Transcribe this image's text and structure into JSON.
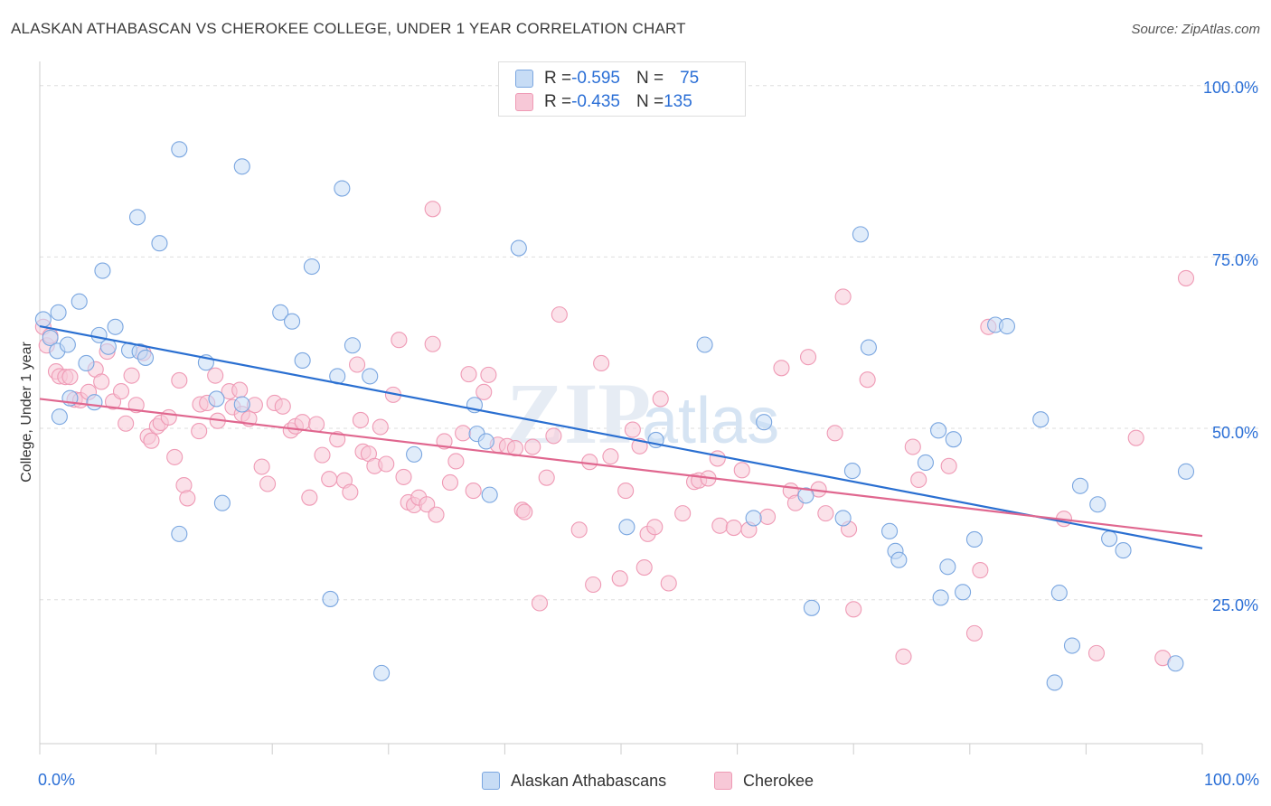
{
  "title": "ALASKAN ATHABASCAN VS CHEROKEE COLLEGE, UNDER 1 YEAR CORRELATION CHART",
  "source": "Source: ZipAtlas.com",
  "watermark": {
    "zip": "ZIP",
    "atlas": "atlas"
  },
  "legend_top": [
    {
      "r_label": "R = ",
      "r_value": "-0.595",
      "n_label": "N = ",
      "n_value": "75",
      "color": "#7aa6e0"
    },
    {
      "r_label": "R = ",
      "r_value": "-0.435",
      "n_label": "N = ",
      "n_value": "135",
      "color": "#ef9ab5"
    }
  ],
  "chart_data": {
    "type": "scatter",
    "title": "ALASKAN ATHABASCAN VS CHEROKEE COLLEGE, UNDER 1 YEAR CORRELATION CHART",
    "xlabel": "",
    "ylabel": "College, Under 1 year",
    "x_tick_labels": [
      "0.0%",
      "100.0%"
    ],
    "y_tick_labels": [
      "100.0%",
      "75.0%",
      "50.0%",
      "25.0%"
    ],
    "xlim": [
      0,
      100
    ],
    "ylim": [
      4,
      103
    ],
    "grid": true,
    "legend_position": "bottom-center",
    "series": [
      {
        "name": "Alaskan Athabascans",
        "color": "#7aa6e0",
        "fill": "#c7dcf5",
        "trend": {
          "x": [
            0,
            100
          ],
          "y": [
            64.9,
            32.5
          ],
          "color": "#2a6fd1"
        },
        "points": [
          [
            0.3,
            65.9
          ],
          [
            1.6,
            66.9
          ],
          [
            3.4,
            68.5
          ],
          [
            0.9,
            63.2
          ],
          [
            1.5,
            61.3
          ],
          [
            2.4,
            62.2
          ],
          [
            5.1,
            63.6
          ],
          [
            6.5,
            64.8
          ],
          [
            5.9,
            61.9
          ],
          [
            7.7,
            61.4
          ],
          [
            8.6,
            61.2
          ],
          [
            9.1,
            60.3
          ],
          [
            4.0,
            59.5
          ],
          [
            14.3,
            59.6
          ],
          [
            2.6,
            54.4
          ],
          [
            4.7,
            53.8
          ],
          [
            1.7,
            51.7
          ],
          [
            15.2,
            54.3
          ],
          [
            17.4,
            53.5
          ],
          [
            8.4,
            80.8
          ],
          [
            10.3,
            77.0
          ],
          [
            12.0,
            90.7
          ],
          [
            17.4,
            88.2
          ],
          [
            5.4,
            73.0
          ],
          [
            23.4,
            73.6
          ],
          [
            20.7,
            66.9
          ],
          [
            21.7,
            65.6
          ],
          [
            26.0,
            85.0
          ],
          [
            26.9,
            62.1
          ],
          [
            22.6,
            59.9
          ],
          [
            25.6,
            57.6
          ],
          [
            28.4,
            57.6
          ],
          [
            37.6,
            49.2
          ],
          [
            12.0,
            34.6
          ],
          [
            15.7,
            39.1
          ],
          [
            25.0,
            25.1
          ],
          [
            29.4,
            14.3
          ],
          [
            32.2,
            46.2
          ],
          [
            37.4,
            53.4
          ],
          [
            38.4,
            48.1
          ],
          [
            38.7,
            40.3
          ],
          [
            41.2,
            76.3
          ],
          [
            50.5,
            35.6
          ],
          [
            53.0,
            48.3
          ],
          [
            57.2,
            62.2
          ],
          [
            61.4,
            36.9
          ],
          [
            62.3,
            50.9
          ],
          [
            65.9,
            40.2
          ],
          [
            66.4,
            23.8
          ],
          [
            69.1,
            36.9
          ],
          [
            70.6,
            78.3
          ],
          [
            69.9,
            43.8
          ],
          [
            71.3,
            61.8
          ],
          [
            73.1,
            35.0
          ],
          [
            73.6,
            32.1
          ],
          [
            73.9,
            30.8
          ],
          [
            76.2,
            45.0
          ],
          [
            77.3,
            49.7
          ],
          [
            77.5,
            25.3
          ],
          [
            78.1,
            29.8
          ],
          [
            78.6,
            48.4
          ],
          [
            79.4,
            26.1
          ],
          [
            80.4,
            33.8
          ],
          [
            82.2,
            65.1
          ],
          [
            83.2,
            64.9
          ],
          [
            86.1,
            51.3
          ],
          [
            87.3,
            12.9
          ],
          [
            87.7,
            26.0
          ],
          [
            88.8,
            18.3
          ],
          [
            89.5,
            41.6
          ],
          [
            91.0,
            38.9
          ],
          [
            92.0,
            33.9
          ],
          [
            93.2,
            32.2
          ],
          [
            98.6,
            43.7
          ],
          [
            97.7,
            15.7
          ]
        ]
      },
      {
        "name": "Cherokee",
        "color": "#ef9ab5",
        "fill": "#f7c8d7",
        "trend": {
          "x": [
            0,
            100
          ],
          "y": [
            54.3,
            34.3
          ],
          "color": "#e0678f"
        },
        "points": [
          [
            0.3,
            64.8
          ],
          [
            0.6,
            62.1
          ],
          [
            0.9,
            63.5
          ],
          [
            1.4,
            58.3
          ],
          [
            1.7,
            57.6
          ],
          [
            2.2,
            57.5
          ],
          [
            2.6,
            57.5
          ],
          [
            3.0,
            54.2
          ],
          [
            3.5,
            54.1
          ],
          [
            4.2,
            55.3
          ],
          [
            4.8,
            58.6
          ],
          [
            5.3,
            56.8
          ],
          [
            5.8,
            61.2
          ],
          [
            6.3,
            53.9
          ],
          [
            7.0,
            55.4
          ],
          [
            7.4,
            50.7
          ],
          [
            7.9,
            57.7
          ],
          [
            8.3,
            53.4
          ],
          [
            8.9,
            61.0
          ],
          [
            9.3,
            48.8
          ],
          [
            9.6,
            48.2
          ],
          [
            10.1,
            50.3
          ],
          [
            10.4,
            50.8
          ],
          [
            11.1,
            51.6
          ],
          [
            11.6,
            45.8
          ],
          [
            12.0,
            57.0
          ],
          [
            12.4,
            41.7
          ],
          [
            12.7,
            39.8
          ],
          [
            13.8,
            53.5
          ],
          [
            14.4,
            53.7
          ],
          [
            15.1,
            57.7
          ],
          [
            15.3,
            51.1
          ],
          [
            16.3,
            55.4
          ],
          [
            16.6,
            53.1
          ],
          [
            17.4,
            52.1
          ],
          [
            17.2,
            55.6
          ],
          [
            18.0,
            51.4
          ],
          [
            18.5,
            53.4
          ],
          [
            19.1,
            44.4
          ],
          [
            19.6,
            41.9
          ],
          [
            20.2,
            53.7
          ],
          [
            20.9,
            53.2
          ],
          [
            21.6,
            49.7
          ],
          [
            22.0,
            50.3
          ],
          [
            22.6,
            50.9
          ],
          [
            23.2,
            39.9
          ],
          [
            23.8,
            50.6
          ],
          [
            24.3,
            46.1
          ],
          [
            24.9,
            42.6
          ],
          [
            25.6,
            48.4
          ],
          [
            26.2,
            42.4
          ],
          [
            26.7,
            40.7
          ],
          [
            27.3,
            59.3
          ],
          [
            27.8,
            46.6
          ],
          [
            28.3,
            46.3
          ],
          [
            28.8,
            44.5
          ],
          [
            29.3,
            50.2
          ],
          [
            29.8,
            44.8
          ],
          [
            30.4,
            54.9
          ],
          [
            30.9,
            62.9
          ],
          [
            31.3,
            42.9
          ],
          [
            31.7,
            39.2
          ],
          [
            32.2,
            38.8
          ],
          [
            32.6,
            39.9
          ],
          [
            33.3,
            38.9
          ],
          [
            33.8,
            62.3
          ],
          [
            34.1,
            37.4
          ],
          [
            34.8,
            48.1
          ],
          [
            35.3,
            42.1
          ],
          [
            35.8,
            45.2
          ],
          [
            36.4,
            49.3
          ],
          [
            36.9,
            57.9
          ],
          [
            37.3,
            40.9
          ],
          [
            38.2,
            55.3
          ],
          [
            38.6,
            57.8
          ],
          [
            39.4,
            47.6
          ],
          [
            40.2,
            47.4
          ],
          [
            40.9,
            47.1
          ],
          [
            41.5,
            38.1
          ],
          [
            41.7,
            37.8
          ],
          [
            42.4,
            47.3
          ],
          [
            43.0,
            24.5
          ],
          [
            43.6,
            42.8
          ],
          [
            44.2,
            48.9
          ],
          [
            44.7,
            66.6
          ],
          [
            46.4,
            35.2
          ],
          [
            47.3,
            45.1
          ],
          [
            47.6,
            27.2
          ],
          [
            48.3,
            59.5
          ],
          [
            49.1,
            45.9
          ],
          [
            49.9,
            28.1
          ],
          [
            50.4,
            40.9
          ],
          [
            51.0,
            49.8
          ],
          [
            51.6,
            47.4
          ],
          [
            52.0,
            29.7
          ],
          [
            52.3,
            34.6
          ],
          [
            52.9,
            35.6
          ],
          [
            53.4,
            54.3
          ],
          [
            54.1,
            27.4
          ],
          [
            55.3,
            37.6
          ],
          [
            56.3,
            42.2
          ],
          [
            56.7,
            42.4
          ],
          [
            57.5,
            42.7
          ],
          [
            58.3,
            45.6
          ],
          [
            58.5,
            35.8
          ],
          [
            59.7,
            35.5
          ],
          [
            60.4,
            43.9
          ],
          [
            61.0,
            35.2
          ],
          [
            62.6,
            37.1
          ],
          [
            63.8,
            58.8
          ],
          [
            64.6,
            40.9
          ],
          [
            65.0,
            39.1
          ],
          [
            66.1,
            60.4
          ],
          [
            67.0,
            41.1
          ],
          [
            67.6,
            37.6
          ],
          [
            68.4,
            49.3
          ],
          [
            69.1,
            69.2
          ],
          [
            69.6,
            35.3
          ],
          [
            70.0,
            23.6
          ],
          [
            71.2,
            57.1
          ],
          [
            74.3,
            16.7
          ],
          [
            75.1,
            47.3
          ],
          [
            75.6,
            42.5
          ],
          [
            78.2,
            44.5
          ],
          [
            80.4,
            20.1
          ],
          [
            80.9,
            29.3
          ],
          [
            81.6,
            64.8
          ],
          [
            88.1,
            36.8
          ],
          [
            90.9,
            17.2
          ],
          [
            94.3,
            48.6
          ],
          [
            96.6,
            16.5
          ],
          [
            98.6,
            71.9
          ],
          [
            33.8,
            82.0
          ],
          [
            27.6,
            51.2
          ],
          [
            13.7,
            49.6
          ]
        ]
      }
    ]
  },
  "bottom_legend": [
    "Alaskan Athabascans",
    "Cherokee"
  ]
}
